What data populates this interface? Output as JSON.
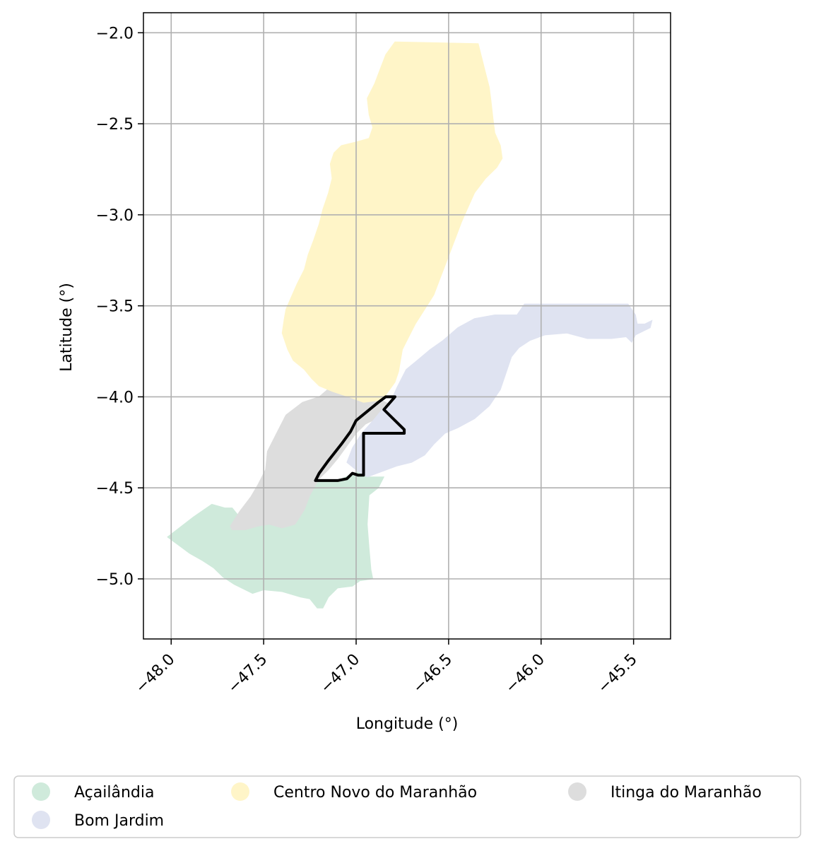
{
  "map": {
    "xlabel": "Longitude (°)",
    "ylabel": "Latitude (°)",
    "x_ticks": [
      "−48.0",
      "−47.5",
      "−47.0",
      "−46.5",
      "−46.0",
      "−45.5"
    ],
    "y_ticks": [
      "−2.0",
      "−2.5",
      "−3.0",
      "−3.5",
      "−4.0",
      "−4.5",
      "−5.0"
    ],
    "grid": true
  },
  "legend": {
    "items": [
      {
        "label": "Açailândia",
        "color": "#cfeadb"
      },
      {
        "label": "Centro Novo do Maranhão",
        "color": "#fff5c8"
      },
      {
        "label": "Itinga do Maranhão",
        "color": "#dddddd"
      },
      {
        "label": "Bom Jardim",
        "color": "#dfe3f1"
      }
    ]
  },
  "chart_data": {
    "type": "map",
    "xlabel": "Longitude (°)",
    "ylabel": "Latitude (°)",
    "xlim": [
      -48.15,
      -45.3
    ],
    "ylim": [
      -5.33,
      -1.89
    ],
    "x_ticks": [
      -48.0,
      -47.5,
      -47.0,
      -46.5,
      -46.0,
      -45.5
    ],
    "y_ticks": [
      -2.0,
      -2.5,
      -3.0,
      -3.5,
      -4.0,
      -4.5,
      -5.0
    ],
    "grid": true,
    "legend_position": "bottom",
    "regions": [
      {
        "name": "Açailândia",
        "color": "#cfeadb",
        "polygon": [
          [
            -48.02,
            -4.77
          ],
          [
            -47.88,
            -4.66
          ],
          [
            -47.78,
            -4.59
          ],
          [
            -47.71,
            -4.61
          ],
          [
            -47.67,
            -4.61
          ],
          [
            -47.59,
            -4.71
          ],
          [
            -47.45,
            -4.7
          ],
          [
            -47.3,
            -4.6
          ],
          [
            -47.22,
            -4.47
          ],
          [
            -47.1,
            -4.46
          ],
          [
            -46.99,
            -4.41
          ],
          [
            -46.93,
            -4.44
          ],
          [
            -46.85,
            -4.44
          ],
          [
            -46.88,
            -4.5
          ],
          [
            -46.93,
            -4.54
          ],
          [
            -46.94,
            -4.7
          ],
          [
            -46.93,
            -4.83
          ],
          [
            -46.92,
            -4.95
          ],
          [
            -46.91,
            -5.0
          ],
          [
            -46.98,
            -5.01
          ],
          [
            -47.02,
            -5.04
          ],
          [
            -47.1,
            -5.05
          ],
          [
            -47.15,
            -5.1
          ],
          [
            -47.18,
            -5.16
          ],
          [
            -47.21,
            -5.16
          ],
          [
            -47.25,
            -5.11
          ],
          [
            -47.3,
            -5.1
          ],
          [
            -47.4,
            -5.07
          ],
          [
            -47.5,
            -5.06
          ],
          [
            -47.56,
            -5.08
          ],
          [
            -47.66,
            -5.03
          ],
          [
            -47.72,
            -4.99
          ],
          [
            -47.77,
            -4.94
          ],
          [
            -47.83,
            -4.9
          ],
          [
            -47.9,
            -4.86
          ],
          [
            -47.98,
            -4.8
          ]
        ]
      },
      {
        "name": "Itinga do Maranhão",
        "color": "#dddddd",
        "polygon": [
          [
            -47.68,
            -4.71
          ],
          [
            -47.63,
            -4.63
          ],
          [
            -47.57,
            -4.55
          ],
          [
            -47.53,
            -4.48
          ],
          [
            -47.49,
            -4.4
          ],
          [
            -47.48,
            -4.3
          ],
          [
            -47.44,
            -4.22
          ],
          [
            -47.38,
            -4.1
          ],
          [
            -47.29,
            -4.03
          ],
          [
            -47.2,
            -4.0
          ],
          [
            -47.12,
            -3.93
          ],
          [
            -47.06,
            -3.83
          ],
          [
            -47.03,
            -3.72
          ],
          [
            -47.02,
            -3.65
          ],
          [
            -46.99,
            -3.7
          ],
          [
            -46.96,
            -3.75
          ],
          [
            -46.94,
            -3.83
          ],
          [
            -46.93,
            -3.89
          ],
          [
            -46.91,
            -3.96
          ],
          [
            -46.88,
            -4.01
          ],
          [
            -46.82,
            -4.04
          ],
          [
            -46.85,
            -4.1
          ],
          [
            -46.95,
            -4.15
          ],
          [
            -47.0,
            -4.2
          ],
          [
            -47.05,
            -4.27
          ],
          [
            -47.1,
            -4.34
          ],
          [
            -47.15,
            -4.4
          ],
          [
            -47.2,
            -4.45
          ],
          [
            -47.25,
            -4.54
          ],
          [
            -47.28,
            -4.62
          ],
          [
            -47.33,
            -4.7
          ],
          [
            -47.4,
            -4.72
          ],
          [
            -47.47,
            -4.7
          ],
          [
            -47.53,
            -4.71
          ],
          [
            -47.6,
            -4.73
          ],
          [
            -47.67,
            -4.73
          ]
        ]
      },
      {
        "name": "Bom Jardim",
        "color": "#dfe3f1",
        "polygon": [
          [
            -46.82,
            -4.04
          ],
          [
            -46.78,
            -3.95
          ],
          [
            -46.73,
            -3.85
          ],
          [
            -46.67,
            -3.8
          ],
          [
            -46.6,
            -3.74
          ],
          [
            -46.53,
            -3.69
          ],
          [
            -46.45,
            -3.62
          ],
          [
            -46.36,
            -3.57
          ],
          [
            -46.25,
            -3.55
          ],
          [
            -46.13,
            -3.55
          ],
          [
            -46.09,
            -3.49
          ],
          [
            -45.53,
            -3.49
          ],
          [
            -45.49,
            -3.55
          ],
          [
            -45.48,
            -3.6
          ],
          [
            -45.44,
            -3.6
          ],
          [
            -45.4,
            -3.58
          ],
          [
            -45.41,
            -3.62
          ],
          [
            -45.49,
            -3.66
          ],
          [
            -45.51,
            -3.7
          ],
          [
            -45.54,
            -3.67
          ],
          [
            -45.62,
            -3.68
          ],
          [
            -45.75,
            -3.68
          ],
          [
            -45.86,
            -3.65
          ],
          [
            -45.98,
            -3.66
          ],
          [
            -46.06,
            -3.69
          ],
          [
            -46.12,
            -3.73
          ],
          [
            -46.16,
            -3.78
          ],
          [
            -46.18,
            -3.84
          ],
          [
            -46.22,
            -3.96
          ],
          [
            -46.28,
            -4.05
          ],
          [
            -46.36,
            -4.12
          ],
          [
            -46.45,
            -4.17
          ],
          [
            -46.52,
            -4.2
          ],
          [
            -46.58,
            -4.26
          ],
          [
            -46.63,
            -4.32
          ],
          [
            -46.7,
            -4.36
          ],
          [
            -46.78,
            -4.38
          ],
          [
            -46.86,
            -4.41
          ],
          [
            -46.94,
            -4.44
          ],
          [
            -46.99,
            -4.41
          ],
          [
            -47.05,
            -4.36
          ],
          [
            -47.02,
            -4.28
          ],
          [
            -46.97,
            -4.2
          ],
          [
            -46.9,
            -4.12
          ],
          [
            -46.86,
            -4.07
          ]
        ]
      },
      {
        "name": "Centro Novo do Maranhão",
        "color": "#fff5c8",
        "polygon": [
          [
            -46.79,
            -2.05
          ],
          [
            -46.84,
            -2.12
          ],
          [
            -46.87,
            -2.2
          ],
          [
            -46.9,
            -2.28
          ],
          [
            -46.94,
            -2.36
          ],
          [
            -46.93,
            -2.45
          ],
          [
            -46.91,
            -2.52
          ],
          [
            -46.93,
            -2.58
          ],
          [
            -47.0,
            -2.6
          ],
          [
            -47.08,
            -2.62
          ],
          [
            -47.12,
            -2.66
          ],
          [
            -47.14,
            -2.72
          ],
          [
            -47.13,
            -2.8
          ],
          [
            -47.15,
            -2.88
          ],
          [
            -47.18,
            -2.97
          ],
          [
            -47.2,
            -3.05
          ],
          [
            -47.23,
            -3.14
          ],
          [
            -47.26,
            -3.22
          ],
          [
            -47.28,
            -3.3
          ],
          [
            -47.32,
            -3.38
          ],
          [
            -47.35,
            -3.45
          ],
          [
            -47.38,
            -3.52
          ],
          [
            -47.39,
            -3.58
          ],
          [
            -47.4,
            -3.65
          ],
          [
            -47.37,
            -3.74
          ],
          [
            -47.34,
            -3.8
          ],
          [
            -47.28,
            -3.85
          ],
          [
            -47.24,
            -3.9
          ],
          [
            -47.2,
            -3.94
          ],
          [
            -47.13,
            -3.97
          ],
          [
            -47.07,
            -3.99
          ],
          [
            -47.04,
            -4.0
          ],
          [
            -46.96,
            -4.03
          ],
          [
            -46.88,
            -4.02
          ],
          [
            -46.84,
            -3.99
          ],
          [
            -46.79,
            -3.92
          ],
          [
            -46.77,
            -3.86
          ],
          [
            -46.76,
            -3.8
          ],
          [
            -46.75,
            -3.74
          ],
          [
            -46.72,
            -3.68
          ],
          [
            -46.68,
            -3.6
          ],
          [
            -46.63,
            -3.52
          ],
          [
            -46.58,
            -3.44
          ],
          [
            -46.55,
            -3.36
          ],
          [
            -46.52,
            -3.28
          ],
          [
            -46.49,
            -3.2
          ],
          [
            -46.46,
            -3.12
          ],
          [
            -46.43,
            -3.04
          ],
          [
            -46.4,
            -2.97
          ],
          [
            -46.36,
            -2.88
          ],
          [
            -46.3,
            -2.8
          ],
          [
            -46.24,
            -2.74
          ],
          [
            -46.21,
            -2.69
          ],
          [
            -46.22,
            -2.62
          ],
          [
            -46.25,
            -2.55
          ],
          [
            -46.26,
            -2.47
          ],
          [
            -46.27,
            -2.38
          ],
          [
            -46.28,
            -2.3
          ],
          [
            -46.3,
            -2.22
          ],
          [
            -46.32,
            -2.14
          ],
          [
            -46.34,
            -2.06
          ]
        ]
      }
    ],
    "outline": {
      "color": "#000000",
      "polygon": [
        [
          -46.84,
          -4.0
        ],
        [
          -46.79,
          -4.0
        ],
        [
          -46.85,
          -4.07
        ],
        [
          -46.74,
          -4.18
        ],
        [
          -46.74,
          -4.2
        ],
        [
          -46.96,
          -4.2
        ],
        [
          -46.96,
          -4.43
        ],
        [
          -46.99,
          -4.43
        ],
        [
          -47.02,
          -4.42
        ],
        [
          -47.05,
          -4.45
        ],
        [
          -47.1,
          -4.46
        ],
        [
          -47.18,
          -4.46
        ],
        [
          -47.22,
          -4.46
        ],
        [
          -47.2,
          -4.42
        ],
        [
          -47.15,
          -4.35
        ],
        [
          -47.08,
          -4.26
        ],
        [
          -47.03,
          -4.19
        ],
        [
          -47.0,
          -4.13
        ],
        [
          -46.94,
          -4.08
        ],
        [
          -46.88,
          -4.03
        ]
      ]
    }
  }
}
